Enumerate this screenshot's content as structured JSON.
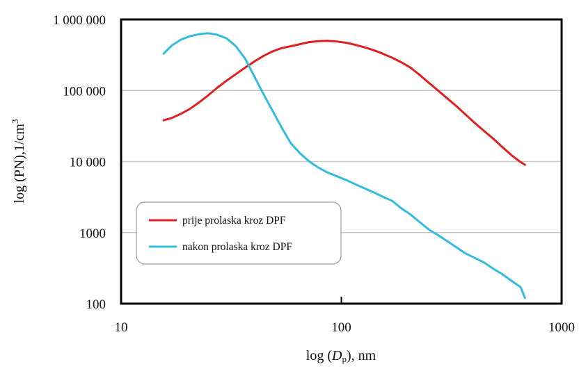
{
  "chart_data": {
    "type": "line",
    "title": "",
    "xlabel": "log (Dp), nm",
    "xlabel_parts": {
      "prefix": "log (",
      "var": "D",
      "sub": "p",
      "suffix": "), nm"
    },
    "ylabel": "log (PN),1/cm3",
    "ylabel_parts": {
      "base": "log (PN),1/cm",
      "sup": "3"
    },
    "x_scale": "log",
    "y_scale": "log",
    "xlim": [
      10,
      1000
    ],
    "ylim": [
      100,
      1000000
    ],
    "x_ticks": [
      {
        "value": 10,
        "label": "10"
      },
      {
        "value": 100,
        "label": "100"
      },
      {
        "value": 1000,
        "label": "1000"
      }
    ],
    "y_ticks": [
      {
        "value": 100,
        "label": "100"
      },
      {
        "value": 1000,
        "label": "1000"
      },
      {
        "value": 10000,
        "label": "10 000"
      },
      {
        "value": 100000,
        "label": "100 000"
      },
      {
        "value": 1000000,
        "label": "1 000 000"
      }
    ],
    "grid": {
      "horizontal": true,
      "vertical": false
    },
    "legend": {
      "placement": "bottom-left"
    },
    "series": [
      {
        "name": "prije prolaska kroz DPF",
        "color": "#e02020",
        "points": [
          [
            15.6,
            38000
          ],
          [
            17,
            41000
          ],
          [
            18.7,
            47000
          ],
          [
            20.5,
            55000
          ],
          [
            22.6,
            68000
          ],
          [
            24.8,
            85000
          ],
          [
            27.4,
            110000
          ],
          [
            30.2,
            138000
          ],
          [
            33.2,
            170000
          ],
          [
            36.6,
            210000
          ],
          [
            40.2,
            255000
          ],
          [
            44.2,
            305000
          ],
          [
            48.7,
            355000
          ],
          [
            53.6,
            395000
          ],
          [
            59,
            420000
          ],
          [
            65,
            450000
          ],
          [
            71.5,
            480000
          ],
          [
            78.7,
            495000
          ],
          [
            86.6,
            500000
          ],
          [
            95.4,
            490000
          ],
          [
            105,
            470000
          ],
          [
            115.6,
            440000
          ],
          [
            127.3,
            405000
          ],
          [
            140,
            370000
          ],
          [
            154,
            330000
          ],
          [
            170,
            290000
          ],
          [
            187,
            250000
          ],
          [
            206,
            210000
          ],
          [
            227,
            165000
          ],
          [
            250,
            128000
          ],
          [
            275,
            100000
          ],
          [
            302,
            78000
          ],
          [
            333,
            60000
          ],
          [
            366,
            46000
          ],
          [
            403,
            35000
          ],
          [
            444,
            27000
          ],
          [
            489,
            21000
          ],
          [
            538,
            16000
          ],
          [
            592,
            12300
          ],
          [
            652,
            9800
          ],
          [
            682,
            9000
          ]
        ]
      },
      {
        "name": "nakon prolaska kroz DPF",
        "color": "#33bbdd",
        "points": [
          [
            15.6,
            330000
          ],
          [
            17,
            430000
          ],
          [
            18.7,
            520000
          ],
          [
            20.5,
            580000
          ],
          [
            22.6,
            620000
          ],
          [
            24.8,
            640000
          ],
          [
            27.4,
            610000
          ],
          [
            30.2,
            540000
          ],
          [
            33.2,
            420000
          ],
          [
            36.6,
            280000
          ],
          [
            40.2,
            160000
          ],
          [
            44.2,
            90000
          ],
          [
            48.7,
            52000
          ],
          [
            53.6,
            30000
          ],
          [
            59,
            18000
          ],
          [
            65,
            13000
          ],
          [
            71.5,
            10000
          ],
          [
            78.7,
            8200
          ],
          [
            86.6,
            7000
          ],
          [
            95.4,
            6200
          ],
          [
            105,
            5500
          ],
          [
            115.6,
            4800
          ],
          [
            127.3,
            4200
          ],
          [
            140,
            3700
          ],
          [
            154,
            3200
          ],
          [
            170,
            2800
          ],
          [
            187,
            2200
          ],
          [
            206,
            1800
          ],
          [
            227,
            1400
          ],
          [
            250,
            1100
          ],
          [
            275,
            920
          ],
          [
            302,
            760
          ],
          [
            333,
            620
          ],
          [
            366,
            510
          ],
          [
            403,
            440
          ],
          [
            444,
            380
          ],
          [
            489,
            310
          ],
          [
            538,
            260
          ],
          [
            592,
            210
          ],
          [
            652,
            170
          ],
          [
            682,
            120
          ]
        ]
      }
    ]
  }
}
